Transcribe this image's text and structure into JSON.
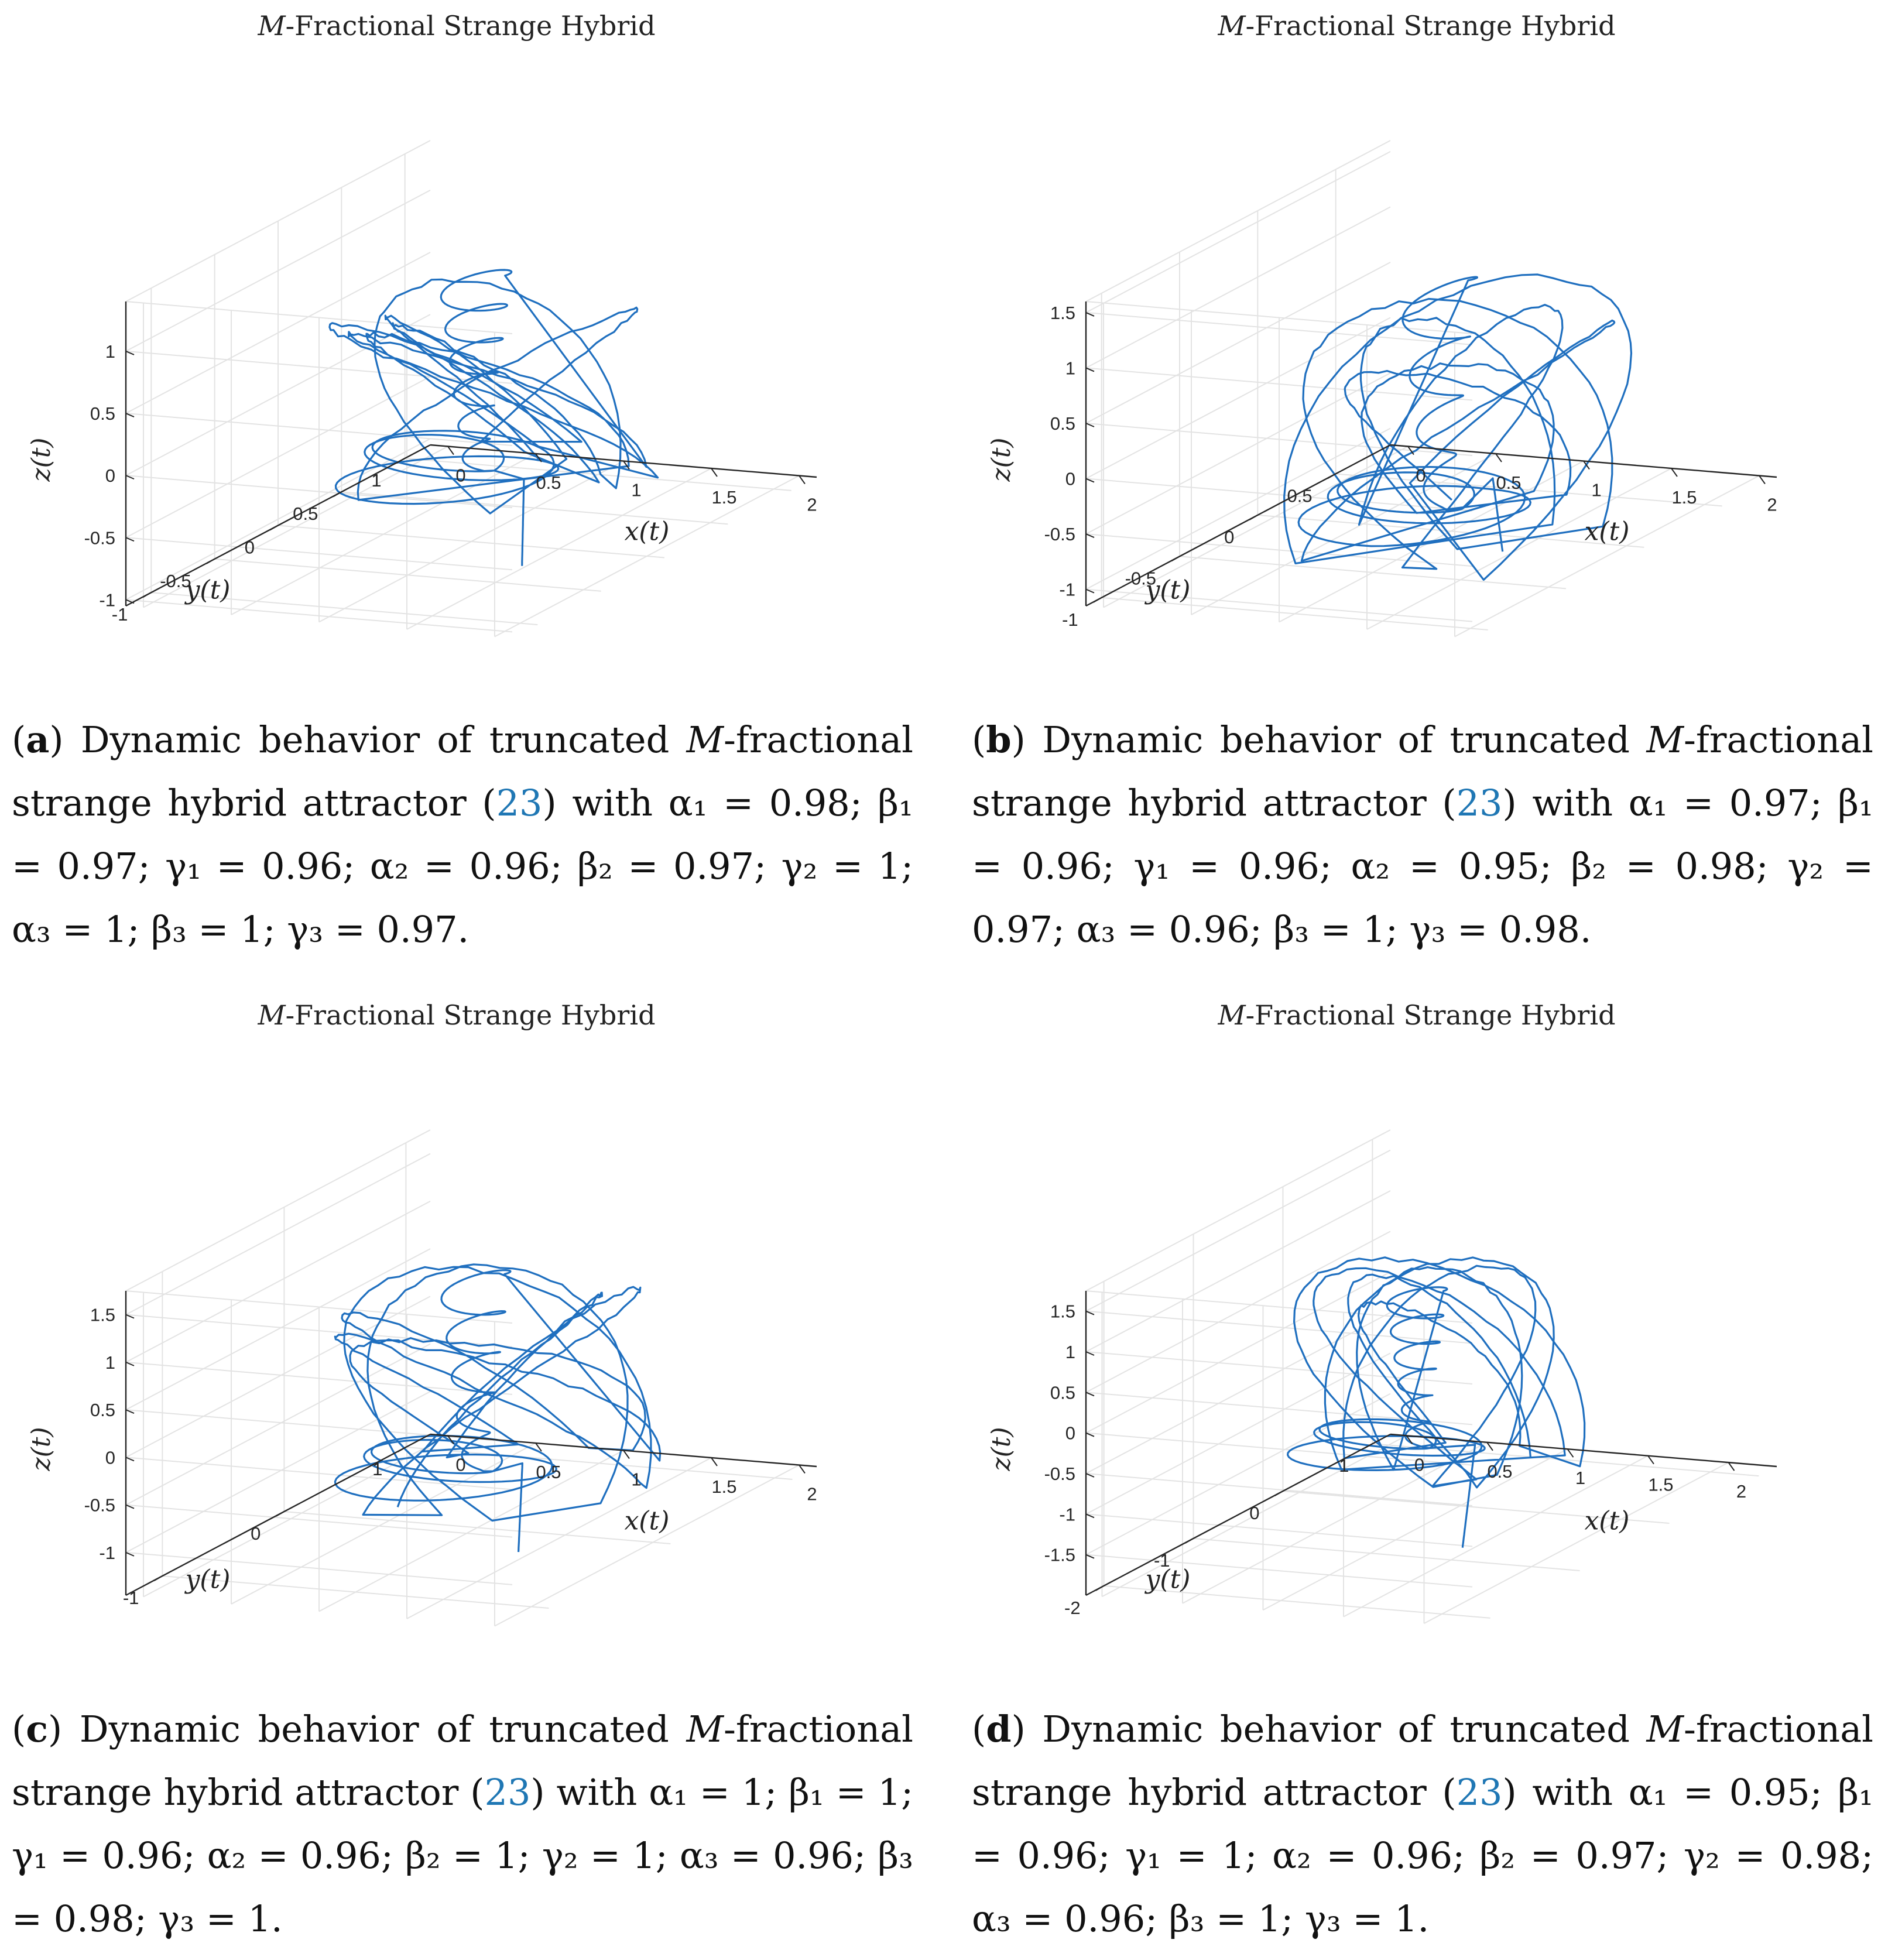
{
  "colors": {
    "trajectory": "#1f6fbf",
    "grid": "#e3e3e3",
    "axis": "#262626",
    "link": "#1f77b4"
  },
  "chart_data": [
    {
      "id": "a",
      "type": "line3d",
      "title": "M-Fractional Strange Hybrid",
      "xlabel": "x(t)",
      "ylabel": "y(t)",
      "zlabel": "z(t)",
      "xlim": [
        -0.1,
        2.1
      ],
      "ylim": [
        -1.2,
        1.2
      ],
      "zlim": [
        -1.05,
        1.4
      ],
      "x_ticks": [
        "0",
        "0.5",
        "1",
        "1.5",
        "2"
      ],
      "y_ticks": [
        "1",
        "0.5",
        "0",
        "-0.5",
        "-1"
      ],
      "z_ticks": [
        "1",
        "0.5",
        "0",
        "-0.5",
        "-1"
      ],
      "x_tick_values": [
        0,
        0.5,
        1,
        1.5,
        2
      ],
      "y_tick_values": [
        1,
        0.5,
        0,
        -0.5,
        -1
      ],
      "z_tick_values": [
        1,
        0.5,
        0,
        -0.5,
        -1
      ],
      "params": {
        "seed": 11,
        "bottom": -0.62,
        "top": 1.05,
        "outerMax": 1.35,
        "spiralLoops": 6,
        "tailTo": -0.9
      },
      "caption": {
        "label": "a",
        "text1": " Dynamic behavior of truncated ",
        "italic": "M",
        "text2": "-fractional strange hybrid attractor (",
        "ref": "23",
        "text3": ") with α₁ = 0.98; β₁ = 0.97; γ₁ = 0.96; α₂ = 0.96; β₂ = 0.97; γ₂ = 1; α₃ = 1; β₃ = 1; γ₃ = 0.97."
      }
    },
    {
      "id": "b",
      "type": "line3d",
      "title": "M-Fractional Strange Hybrid",
      "xlabel": "x(t)",
      "ylabel": "y(t)",
      "zlabel": "z(t)",
      "xlim": [
        -0.1,
        2.1
      ],
      "ylim": [
        -1.1,
        0.85
      ],
      "zlim": [
        -1.15,
        1.6
      ],
      "x_ticks": [
        "0",
        "0.5",
        "1",
        "1.5",
        "2"
      ],
      "y_ticks": [
        "0.5",
        "0",
        "-0.5",
        "-1"
      ],
      "z_ticks": [
        "1.5",
        "1",
        "0.5",
        "0",
        "-0.5",
        "-1"
      ],
      "x_tick_values": [
        0,
        0.5,
        1,
        1.5,
        2
      ],
      "y_tick_values": [
        0.5,
        0,
        -0.5,
        -1
      ],
      "z_tick_values": [
        1.5,
        1,
        0.5,
        0,
        -0.5,
        -1
      ],
      "params": {
        "seed": 23,
        "bottom": -1.05,
        "top": 1.15,
        "outerMax": 1.3,
        "spiralLoops": 4,
        "tailTo": -0.95
      },
      "caption": {
        "label": "b",
        "text1": " Dynamic behavior of truncated ",
        "italic": "M",
        "text2": "-fractional strange hybrid attractor (",
        "ref": "23",
        "text3": ") with α₁ = 0.97; β₁ = 0.96; γ₁ = 0.96; α₂ = 0.95; β₂ = 0.98; γ₂ = 0.97; α₃ = 0.96; β₃ = 1; γ₃ = 0.98."
      }
    },
    {
      "id": "c",
      "type": "line3d",
      "title": "M-Fractional Strange Hybrid",
      "xlabel": "x(t)",
      "ylabel": "y(t)",
      "zlabel": "z(t)",
      "xlim": [
        -0.1,
        2.1
      ],
      "ylim": [
        -1.3,
        1.2
      ],
      "zlim": [
        -1.45,
        1.75
      ],
      "x_ticks": [
        "0",
        "0.5",
        "1",
        "1.5",
        "2"
      ],
      "y_ticks": [
        "1",
        "0",
        "-1"
      ],
      "z_ticks": [
        "1.5",
        "1",
        "0.5",
        "0",
        "-0.5",
        "-1"
      ],
      "x_tick_values": [
        0,
        0.5,
        1,
        1.5,
        2
      ],
      "y_tick_values": [
        1,
        0,
        -1
      ],
      "z_tick_values": [
        1.5,
        1,
        0.5,
        0,
        -0.5,
        -1
      ],
      "params": {
        "seed": 37,
        "bottom": -1.0,
        "top": 1.2,
        "outerMax": 1.65,
        "spiralLoops": 5,
        "tailTo": -1.2
      },
      "caption": {
        "label": "c",
        "text1": " Dynamic behavior of truncated ",
        "italic": "M",
        "text2": "-fractional strange hybrid attractor (",
        "ref": "23",
        "text3": ") with α₁ = 1; β₁ = 1; γ₁ = 0.96; α₂ = 0.96; β₂ = 1; γ₂ = 1; α₃ = 0.96; β₃ = 0.98; γ₃ = 1."
      }
    },
    {
      "id": "d",
      "type": "line3d",
      "title": "M-Fractional Strange Hybrid",
      "xlabel": "x(t)",
      "ylabel": "y(t)",
      "zlabel": "z(t)",
      "xlim": [
        -0.1,
        2.3
      ],
      "ylim": [
        -2.2,
        1.2
      ],
      "zlim": [
        -2.0,
        1.75
      ],
      "x_ticks": [
        "0",
        "0.5",
        "1",
        "1.5",
        "2"
      ],
      "y_ticks": [
        "1",
        "0",
        "-1",
        "-2"
      ],
      "z_ticks": [
        "1.5",
        "1",
        "0.5",
        "0",
        "-0.5",
        "-1",
        "-1.5"
      ],
      "x_tick_values": [
        0,
        0.5,
        1,
        1.5,
        2
      ],
      "y_tick_values": [
        1,
        0,
        -1,
        -2
      ],
      "z_tick_values": [
        1.5,
        1,
        0.5,
        0,
        -0.5,
        -1,
        -1.5
      ],
      "params": {
        "seed": 53,
        "bottom": -1.15,
        "top": 0.9,
        "outerMax": 1.7,
        "spiralLoops": 6,
        "tailTo": -1.5
      },
      "caption": {
        "label": "d",
        "text1": " Dynamic behavior of truncated ",
        "italic": "M",
        "text2": "-fractional strange hybrid attractor (",
        "ref": "23",
        "text3": ") with α₁ = 0.95; β₁ = 0.96; γ₁ = 1; α₂ = 0.96; β₂ = 0.97; γ₂ = 0.98; α₃ = 0.96; β₃ = 1; γ₃ = 1."
      }
    }
  ]
}
